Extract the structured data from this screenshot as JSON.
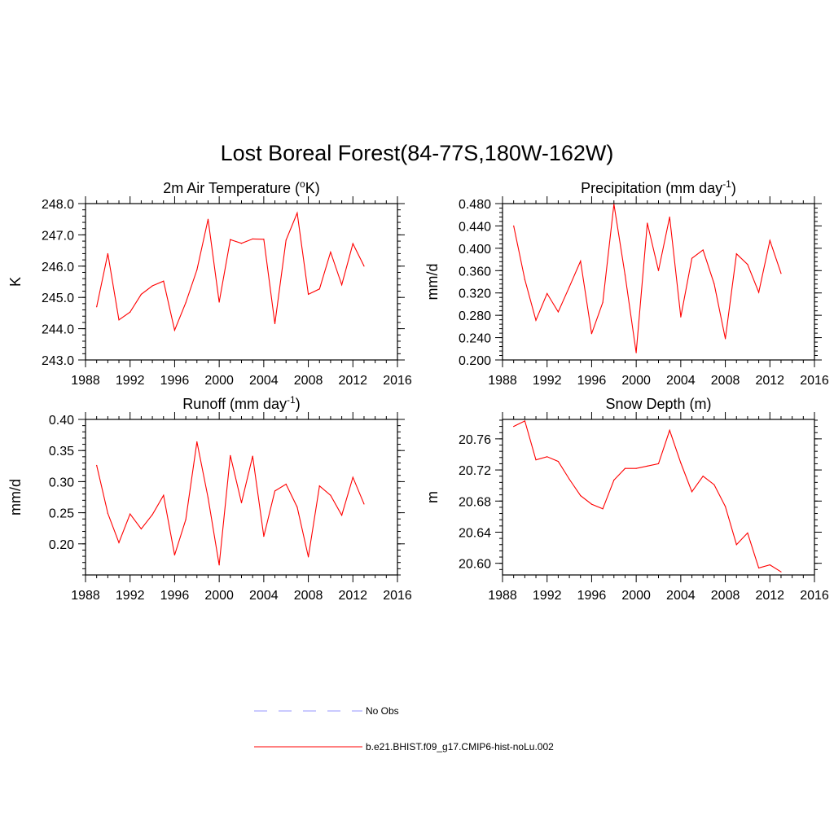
{
  "title": "Lost Boreal Forest(84-77S,180W-162W)",
  "colors": {
    "model": "#ff0000",
    "obs": "#aaaaff",
    "axis": "#000000"
  },
  "legend": {
    "obs_label": "No Obs",
    "model_label": "b.e21.BHIST.f09_g17.CMIP6-hist-noLu.002"
  },
  "chart_data": [
    {
      "type": "line",
      "title": "2m Air Temperature (",
      "title_sup": "o",
      "title_after": "K)",
      "ylabel": "K",
      "xlim": [
        1988,
        2016
      ],
      "ylim": [
        243.0,
        248.0
      ],
      "yticks": [
        243.0,
        244.0,
        245.0,
        246.0,
        247.0,
        248.0
      ],
      "ytick_labels": [
        "243.0",
        "244.0",
        "245.0",
        "246.0",
        "247.0",
        "248.0"
      ],
      "yminor": 0.2,
      "xticks": [
        1988,
        1992,
        1996,
        2000,
        2004,
        2008,
        2012,
        2016
      ],
      "xtick_labels": [
        "1988",
        "1992",
        "1996",
        "2000",
        "2004",
        "2008",
        "2012",
        "2016"
      ],
      "series": [
        {
          "x": [
            1989,
            1990,
            1991,
            1992,
            1993,
            1994,
            1995,
            1996,
            1997,
            1998,
            1999,
            2000,
            2001,
            2002,
            2003,
            2004,
            2005,
            2006,
            2007,
            2008,
            2009,
            2010,
            2011,
            2012,
            2013
          ],
          "values": [
            244.7,
            246.4,
            244.28,
            244.53,
            245.1,
            245.37,
            245.52,
            243.95,
            244.83,
            245.88,
            247.5,
            244.85,
            246.85,
            246.73,
            246.87,
            246.86,
            244.16,
            246.83,
            247.7,
            245.1,
            245.27,
            246.45,
            245.4,
            246.72,
            246.0
          ]
        }
      ]
    },
    {
      "type": "line",
      "title": "Precipitation (mm day",
      "title_sup": "-1",
      "title_after": ")",
      "ylabel": "mm/d",
      "xlim": [
        1988,
        2016
      ],
      "ylim": [
        0.2,
        0.48
      ],
      "yticks": [
        0.2,
        0.24,
        0.28,
        0.32,
        0.36,
        0.4,
        0.44,
        0.48
      ],
      "ytick_labels": [
        "0.200",
        "0.240",
        "0.280",
        "0.320",
        "0.360",
        "0.400",
        "0.440",
        "0.480"
      ],
      "yminor": 0.008,
      "xticks": [
        1988,
        1992,
        1996,
        2000,
        2004,
        2008,
        2012,
        2016
      ],
      "xtick_labels": [
        "1988",
        "1992",
        "1996",
        "2000",
        "2004",
        "2008",
        "2012",
        "2016"
      ],
      "series": [
        {
          "x": [
            1989,
            1990,
            1991,
            1992,
            1993,
            1994,
            1995,
            1996,
            1997,
            1998,
            1999,
            2000,
            2001,
            2002,
            2003,
            2004,
            2005,
            2006,
            2007,
            2008,
            2009,
            2010,
            2011,
            2012,
            2013
          ],
          "values": [
            0.44,
            0.344,
            0.271,
            0.319,
            0.286,
            0.331,
            0.377,
            0.247,
            0.303,
            0.479,
            0.352,
            0.213,
            0.445,
            0.36,
            0.456,
            0.277,
            0.382,
            0.397,
            0.336,
            0.238,
            0.39,
            0.371,
            0.321,
            0.414,
            0.355
          ]
        }
      ]
    },
    {
      "type": "line",
      "title": "Runoff (mm day",
      "title_sup": "-1",
      "title_after": ")",
      "ylabel": "mm/d",
      "xlim": [
        1988,
        2016
      ],
      "ylim": [
        0.15,
        0.4
      ],
      "yticks": [
        0.2,
        0.25,
        0.3,
        0.35,
        0.4
      ],
      "ytick_labels": [
        "0.20",
        "0.25",
        "0.30",
        "0.35",
        "0.40"
      ],
      "yminor": 0.01,
      "xticks": [
        1988,
        1992,
        1996,
        2000,
        2004,
        2008,
        2012,
        2016
      ],
      "xtick_labels": [
        "1988",
        "1992",
        "1996",
        "2000",
        "2004",
        "2008",
        "2012",
        "2016"
      ],
      "series": [
        {
          "x": [
            1989,
            1990,
            1991,
            1992,
            1993,
            1994,
            1995,
            1996,
            1997,
            1998,
            1999,
            2000,
            2001,
            2002,
            2003,
            2004,
            2005,
            2006,
            2007,
            2008,
            2009,
            2010,
            2011,
            2012,
            2013
          ],
          "values": [
            0.326,
            0.249,
            0.202,
            0.248,
            0.224,
            0.247,
            0.278,
            0.182,
            0.239,
            0.364,
            0.274,
            0.166,
            0.342,
            0.266,
            0.341,
            0.212,
            0.285,
            0.296,
            0.259,
            0.179,
            0.293,
            0.278,
            0.246,
            0.307,
            0.264
          ]
        }
      ]
    },
    {
      "type": "line",
      "title": "Snow Depth (m)",
      "title_sup": "",
      "title_after": "",
      "ylabel": "m",
      "xlim": [
        1988,
        2016
      ],
      "ylim": [
        20.585,
        20.785
      ],
      "yticks": [
        20.6,
        20.64,
        20.68,
        20.72,
        20.76
      ],
      "ytick_labels": [
        "20.60",
        "20.64",
        "20.68",
        "20.72",
        "20.76"
      ],
      "yminor": 0.008,
      "xticks": [
        1988,
        1992,
        1996,
        2000,
        2004,
        2008,
        2012,
        2016
      ],
      "xtick_labels": [
        "1988",
        "1992",
        "1996",
        "2000",
        "2004",
        "2008",
        "2012",
        "2016"
      ],
      "series": [
        {
          "x": [
            1989,
            1990,
            1991,
            1992,
            1993,
            1994,
            1995,
            1996,
            1997,
            1998,
            1999,
            2000,
            2001,
            2002,
            2003,
            2004,
            2005,
            2006,
            2007,
            2008,
            2009,
            2010,
            2011,
            2012,
            2013
          ],
          "values": [
            20.776,
            20.783,
            20.733,
            20.737,
            20.731,
            20.708,
            20.687,
            20.676,
            20.67,
            20.707,
            20.722,
            20.722,
            20.725,
            20.728,
            20.771,
            20.729,
            20.692,
            20.712,
            20.701,
            20.673,
            20.624,
            20.639,
            20.594,
            20.598,
            20.589
          ]
        }
      ]
    }
  ]
}
